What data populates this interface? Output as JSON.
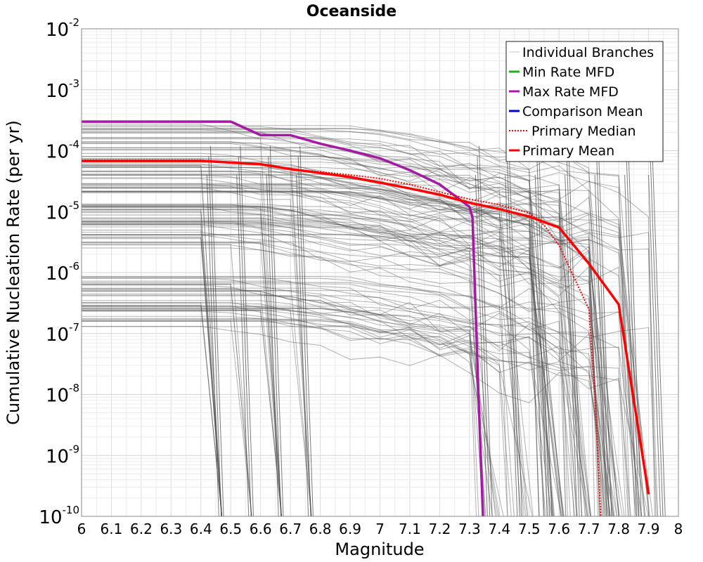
{
  "chart_data": {
    "type": "line",
    "title": "Oceanside",
    "xlabel": "Magnitude",
    "ylabel": "Cumulative Nucleation Rate (per yr)",
    "xlim": [
      6,
      8
    ],
    "ylim": [
      1e-10,
      0.01
    ],
    "yscale": "log",
    "grid": true,
    "legend_position": "top-right",
    "x_ticks": [
      "6",
      "6.1",
      "6.2",
      "6.3",
      "6.4",
      "6.5",
      "6.6",
      "6.7",
      "6.8",
      "6.9",
      "7",
      "7.1",
      "7.2",
      "7.3",
      "7.4",
      "7.5",
      "7.6",
      "7.7",
      "7.8",
      "7.9",
      "8"
    ],
    "y_ticks": [
      {
        "base": "10",
        "exp": "-2"
      },
      {
        "base": "10",
        "exp": "-3"
      },
      {
        "base": "10",
        "exp": "-4"
      },
      {
        "base": "10",
        "exp": "-5"
      },
      {
        "base": "10",
        "exp": "-6"
      },
      {
        "base": "10",
        "exp": "-7"
      },
      {
        "base": "10",
        "exp": "-8"
      },
      {
        "base": "10",
        "exp": "-9"
      },
      {
        "base": "10",
        "exp": "-10"
      }
    ],
    "legend": [
      {
        "name": "Individual Branches",
        "color": "#c8c8c8",
        "style": "solid"
      },
      {
        "name": "Min Rate MFD",
        "color": "#1cb31c",
        "style": "solid"
      },
      {
        "name": "Max Rate MFD",
        "color": "#a51aa5",
        "style": "solid"
      },
      {
        "name": "Comparison Mean",
        "color": "#0000cc",
        "style": "solid"
      },
      {
        "name": "Primary Median",
        "color": "#ff0000",
        "style": "dotted"
      },
      {
        "name": "Primary Mean",
        "color": "#ff0000",
        "style": "solid"
      }
    ],
    "series": [
      {
        "name": "Max Rate MFD",
        "color": "#a51aa5",
        "points": [
          [
            6.0,
            0.0003
          ],
          [
            6.5,
            0.0003
          ],
          [
            6.6,
            0.00018
          ],
          [
            6.7,
            0.00018
          ],
          [
            6.8,
            0.00013
          ],
          [
            6.9,
            0.0001
          ],
          [
            7.0,
            7.5e-05
          ],
          [
            7.1,
            4.8e-05
          ],
          [
            7.2,
            2.8e-05
          ],
          [
            7.3,
            1.2e-05
          ],
          [
            7.31,
            8e-06
          ],
          [
            7.32,
            3e-07
          ],
          [
            7.33,
            1e-08
          ],
          [
            7.345,
            1e-10
          ]
        ]
      },
      {
        "name": "Primary Median",
        "color": "#ff0000",
        "points": [
          [
            6.0,
            7e-05
          ],
          [
            6.4,
            7e-05
          ],
          [
            6.6,
            6e-05
          ],
          [
            6.7,
            5e-05
          ],
          [
            6.8,
            4.5e-05
          ],
          [
            6.9,
            4e-05
          ],
          [
            7.0,
            3.5e-05
          ],
          [
            7.1,
            2.8e-05
          ],
          [
            7.2,
            2.1e-05
          ],
          [
            7.3,
            1.6e-05
          ],
          [
            7.4,
            1.3e-05
          ],
          [
            7.5,
            9.5e-06
          ],
          [
            7.55,
            6e-06
          ],
          [
            7.6,
            2.8e-06
          ],
          [
            7.7,
            2.5e-07
          ],
          [
            7.72,
            1e-08
          ],
          [
            7.74,
            1e-10
          ]
        ]
      },
      {
        "name": "Primary Mean",
        "color": "#ff0000",
        "points": [
          [
            6.0,
            6.8e-05
          ],
          [
            6.4,
            6.8e-05
          ],
          [
            6.6,
            6e-05
          ],
          [
            6.7,
            5e-05
          ],
          [
            6.8,
            4.3e-05
          ],
          [
            6.9,
            3.7e-05
          ],
          [
            7.0,
            3e-05
          ],
          [
            7.1,
            2.4e-05
          ],
          [
            7.2,
            1.9e-05
          ],
          [
            7.3,
            1.4e-05
          ],
          [
            7.4,
            1.1e-05
          ],
          [
            7.5,
            8.3e-06
          ],
          [
            7.6,
            5.5e-06
          ],
          [
            7.7,
            1.4e-06
          ],
          [
            7.8,
            3e-07
          ],
          [
            7.9,
            2.3e-10
          ]
        ]
      }
    ],
    "branch_bands": [
      {
        "flat_min": 2e-05,
        "flat_max": 0.00028,
        "count": 60,
        "end_mag": [
          7.45,
          7.92
        ]
      },
      {
        "flat_min": 2.5e-06,
        "flat_max": 1.4e-05,
        "count": 45,
        "end_mag": [
          7.3,
          7.9
        ]
      },
      {
        "flat_min": 1.2e-07,
        "flat_max": 9e-07,
        "count": 45,
        "end_mag": [
          7.3,
          7.92
        ]
      }
    ],
    "branch_drops": [
      6.45,
      6.55,
      6.65,
      6.75,
      7.35,
      7.45,
      7.55,
      7.65,
      7.75,
      7.85,
      7.93
    ]
  }
}
